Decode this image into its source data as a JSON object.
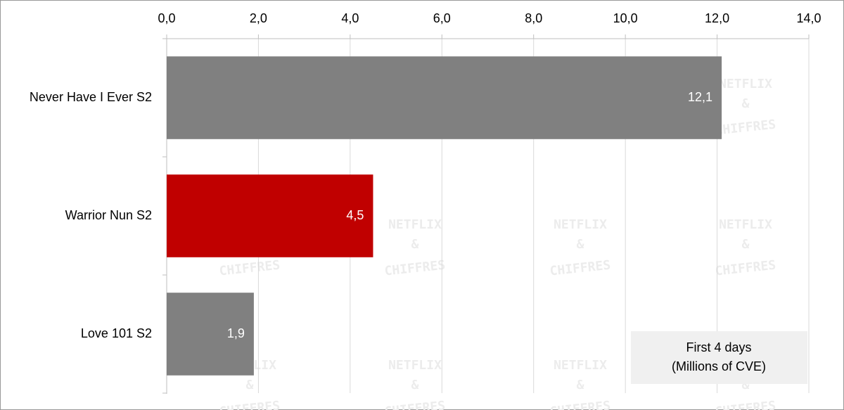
{
  "chart_data": {
    "type": "hbar",
    "categories": [
      "Never Have I Ever S2",
      "Warrior Nun S2",
      "Love 101 S2"
    ],
    "values": [
      12.1,
      4.5,
      1.9
    ],
    "value_labels": [
      "12,1",
      "4,5",
      "1,9"
    ],
    "colors": [
      "#808080",
      "#c00000",
      "#808080"
    ],
    "xlim": [
      0,
      14
    ],
    "xticks": [
      {
        "value": 0,
        "label": "0,0"
      },
      {
        "value": 2,
        "label": "2,0"
      },
      {
        "value": 4,
        "label": "4,0"
      },
      {
        "value": 6,
        "label": "6,0"
      },
      {
        "value": 8,
        "label": "8,0"
      },
      {
        "value": 10,
        "label": "10,0"
      },
      {
        "value": 12,
        "label": "12,0"
      },
      {
        "value": 14,
        "label": "14,0"
      }
    ],
    "grid": true,
    "annotation": [
      "First 4 days",
      "(Millions of CVE)"
    ],
    "watermark": [
      "NETFLIX",
      "&",
      "CHIFFRES"
    ]
  }
}
